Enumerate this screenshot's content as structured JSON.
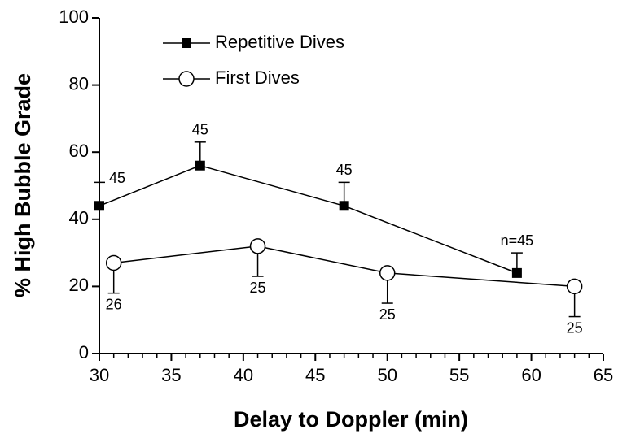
{
  "chart_data": {
    "type": "line",
    "x_label": "Delay to Doppler (min)",
    "y_label": "% High Bubble Grade",
    "xlim": [
      30,
      65
    ],
    "xticks": [
      30,
      35,
      40,
      45,
      50,
      55,
      60,
      65
    ],
    "xminorticks": [
      31,
      32,
      33,
      34,
      36,
      37,
      38,
      39,
      41,
      42,
      43,
      44,
      46,
      47,
      48,
      49,
      51,
      52,
      53,
      54,
      56,
      57,
      58,
      59,
      61,
      62,
      63,
      64
    ],
    "ylim": [
      0,
      100
    ],
    "yticks": [
      0,
      20,
      40,
      60,
      80,
      100
    ],
    "legend": "top-left",
    "series": [
      {
        "name": "Repetitive Dives",
        "color": "#000000",
        "marker": "square",
        "error_direction": "up",
        "x": [
          30,
          37,
          47,
          59
        ],
        "values": [
          44,
          56,
          44,
          24
        ],
        "errors": [
          7,
          7,
          7,
          6
        ],
        "n_labels": [
          "45",
          "45",
          "45",
          "n=45"
        ]
      },
      {
        "name": "First Dives",
        "color": "#000000",
        "marker": "open-circle",
        "error_direction": "down",
        "x": [
          31,
          41,
          50,
          63
        ],
        "values": [
          27,
          32,
          24,
          20
        ],
        "errors": [
          9,
          9,
          9,
          9
        ],
        "n_labels": [
          "26",
          "25",
          "25",
          "25"
        ]
      }
    ]
  }
}
